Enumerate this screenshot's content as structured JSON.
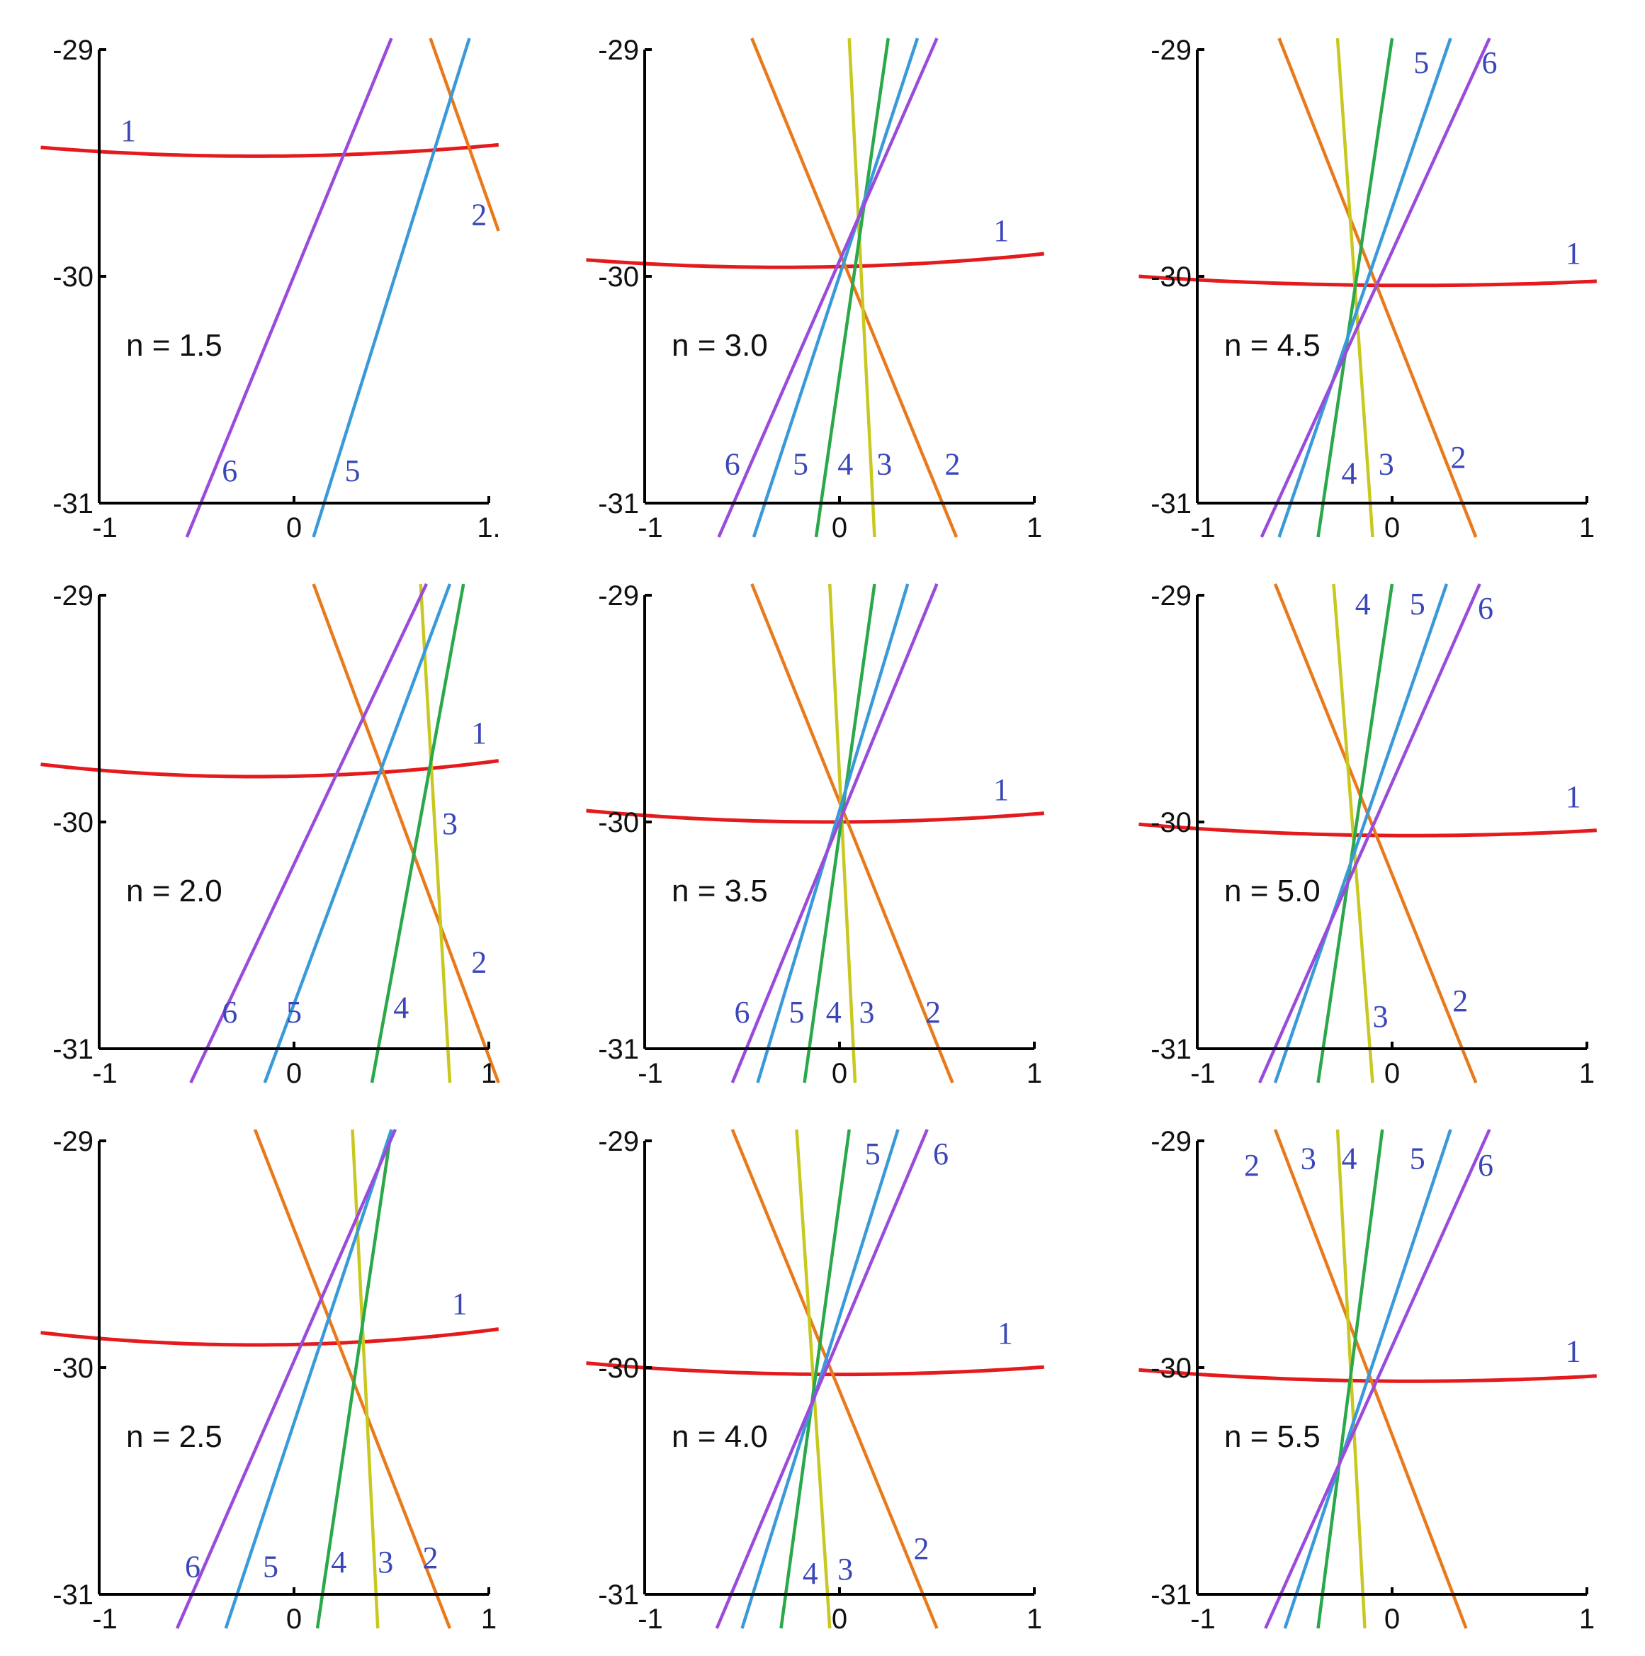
{
  "chart_data": [
    {
      "type": "line",
      "label": "n = 1.5",
      "xlim": [
        -1,
        1
      ],
      "ylim": [
        -31,
        -29
      ],
      "xticks": [
        "-1",
        "0",
        "1."
      ],
      "yticks": [
        "-29",
        "-30",
        "-31"
      ],
      "series": [
        {
          "name": "1",
          "color": "#e41a1c",
          "curve": "parabola",
          "vertex_x": -0.2,
          "vertex_y": -29.47,
          "edge_y": -29.42,
          "label_x": -0.85,
          "label_y": -29.36
        },
        {
          "name": "2",
          "color": "#e87a1c",
          "p1": [
            0.7,
            -28.95
          ],
          "p2": [
            1.05,
            -29.8
          ],
          "label_x": 0.95,
          "label_y": -29.73
        },
        {
          "name": "5",
          "color": "#3a9ad9",
          "p1": [
            0.1,
            -31.15
          ],
          "p2": [
            0.9,
            -28.95
          ],
          "label_x": 0.3,
          "label_y": -30.86
        },
        {
          "name": "6",
          "color": "#9a4bdc",
          "p1": [
            -0.55,
            -31.15
          ],
          "p2": [
            0.5,
            -28.95
          ],
          "label_x": -0.33,
          "label_y": -30.86
        }
      ]
    },
    {
      "type": "line",
      "label": "n = 3.0",
      "xlim": [
        -1,
        1
      ],
      "ylim": [
        -31,
        -29
      ],
      "xticks": [
        "-1",
        "0",
        "1"
      ],
      "yticks": [
        "-29",
        "-30",
        "-31"
      ],
      "series": [
        {
          "name": "1",
          "color": "#e41a1c",
          "curve": "parabola",
          "vertex_x": -0.3,
          "vertex_y": -29.96,
          "edge_y": -29.9,
          "label_x": 0.83,
          "label_y": -29.8
        },
        {
          "name": "2",
          "color": "#e87a1c",
          "p1": [
            -0.45,
            -28.95
          ],
          "p2": [
            0.6,
            -31.15
          ],
          "label_x": 0.58,
          "label_y": -30.83
        },
        {
          "name": "3",
          "color": "#c8c820",
          "p1": [
            0.05,
            -28.95
          ],
          "p2": [
            0.18,
            -31.15
          ],
          "label_x": 0.23,
          "label_y": -30.83
        },
        {
          "name": "4",
          "color": "#2aa84a",
          "p1": [
            0.25,
            -28.95
          ],
          "p2": [
            -0.12,
            -31.15
          ],
          "label_x": 0.03,
          "label_y": -30.83
        },
        {
          "name": "5",
          "color": "#3a9ad9",
          "p1": [
            0.4,
            -28.95
          ],
          "p2": [
            -0.44,
            -31.15
          ],
          "label_x": -0.2,
          "label_y": -30.83
        },
        {
          "name": "6",
          "color": "#9a4bdc",
          "p1": [
            0.5,
            -28.95
          ],
          "p2": [
            -0.62,
            -31.15
          ],
          "label_x": -0.55,
          "label_y": -30.83
        }
      ]
    },
    {
      "type": "line",
      "label": "n = 4.5",
      "xlim": [
        -1,
        1
      ],
      "ylim": [
        -31,
        -29
      ],
      "xticks": [
        "-1",
        "0",
        "1"
      ],
      "yticks": [
        "-29",
        "-30",
        "-31"
      ],
      "series": [
        {
          "name": "1",
          "color": "#e41a1c",
          "curve": "parabola",
          "vertex_x": 0.1,
          "vertex_y": -30.04,
          "edge_y": -30.0,
          "label_x": 0.93,
          "label_y": -29.9
        },
        {
          "name": "2",
          "color": "#e87a1c",
          "p1": [
            -0.58,
            -28.95
          ],
          "p2": [
            0.43,
            -31.15
          ],
          "label_x": 0.34,
          "label_y": -30.8
        },
        {
          "name": "3",
          "color": "#c8c820",
          "p1": [
            -0.28,
            -28.95
          ],
          "p2": [
            -0.1,
            -31.15
          ],
          "label_x": -0.03,
          "label_y": -30.83
        },
        {
          "name": "4",
          "color": "#2aa84a",
          "p1": [
            0.0,
            -28.95
          ],
          "p2": [
            -0.38,
            -31.15
          ],
          "label_x": -0.22,
          "label_y": -30.87
        },
        {
          "name": "5",
          "color": "#3a9ad9",
          "p1": [
            0.3,
            -28.95
          ],
          "p2": [
            -0.58,
            -31.15
          ],
          "label_x": 0.15,
          "label_y": -29.06
        },
        {
          "name": "6",
          "color": "#9a4bdc",
          "p1": [
            0.5,
            -28.95
          ],
          "p2": [
            -0.67,
            -31.15
          ],
          "label_x": 0.5,
          "label_y": -29.06
        }
      ]
    },
    {
      "type": "line",
      "label": "n = 2.0",
      "xlim": [
        -1,
        1
      ],
      "ylim": [
        -31,
        -29
      ],
      "xticks": [
        "-1",
        "0",
        "1"
      ],
      "yticks": [
        "-29",
        "-30",
        "-31"
      ],
      "series": [
        {
          "name": "1",
          "color": "#e41a1c",
          "curve": "parabola",
          "vertex_x": -0.2,
          "vertex_y": -29.8,
          "edge_y": -29.73,
          "label_x": 0.95,
          "label_y": -29.61
        },
        {
          "name": "2",
          "color": "#e87a1c",
          "p1": [
            0.1,
            -28.95
          ],
          "p2": [
            1.05,
            -31.15
          ],
          "label_x": 0.95,
          "label_y": -30.62
        },
        {
          "name": "3",
          "color": "#c8c820",
          "p1": [
            0.65,
            -28.95
          ],
          "p2": [
            0.8,
            -31.15
          ],
          "label_x": 0.8,
          "label_y": -30.01
        },
        {
          "name": "4",
          "color": "#2aa84a",
          "p1": [
            0.87,
            -28.95
          ],
          "p2": [
            0.4,
            -31.15
          ],
          "label_x": 0.55,
          "label_y": -30.82
        },
        {
          "name": "5",
          "color": "#3a9ad9",
          "p1": [
            0.8,
            -28.95
          ],
          "p2": [
            -0.15,
            -31.15
          ],
          "label_x": 0.0,
          "label_y": -30.84
        },
        {
          "name": "6",
          "color": "#9a4bdc",
          "p1": [
            0.68,
            -28.95
          ],
          "p2": [
            -0.53,
            -31.15
          ],
          "label_x": -0.33,
          "label_y": -30.84
        }
      ]
    },
    {
      "type": "line",
      "label": "n = 3.5",
      "xlim": [
        -1,
        1
      ],
      "ylim": [
        -31,
        -29
      ],
      "xticks": [
        "-1",
        "0",
        "1"
      ],
      "yticks": [
        "-29",
        "-30",
        "-31"
      ],
      "series": [
        {
          "name": "1",
          "color": "#e41a1c",
          "curve": "parabola",
          "vertex_x": -0.05,
          "vertex_y": -30.0,
          "edge_y": -29.95,
          "label_x": 0.83,
          "label_y": -29.86
        },
        {
          "name": "2",
          "color": "#e87a1c",
          "p1": [
            -0.45,
            -28.95
          ],
          "p2": [
            0.58,
            -31.15
          ],
          "label_x": 0.48,
          "label_y": -30.84
        },
        {
          "name": "3",
          "color": "#c8c820",
          "p1": [
            -0.05,
            -28.95
          ],
          "p2": [
            0.08,
            -31.15
          ],
          "label_x": 0.14,
          "label_y": -30.84
        },
        {
          "name": "4",
          "color": "#2aa84a",
          "p1": [
            0.18,
            -28.95
          ],
          "p2": [
            -0.18,
            -31.15
          ],
          "label_x": -0.03,
          "label_y": -30.84
        },
        {
          "name": "5",
          "color": "#3a9ad9",
          "p1": [
            0.35,
            -28.95
          ],
          "p2": [
            -0.42,
            -31.15
          ],
          "label_x": -0.22,
          "label_y": -30.84
        },
        {
          "name": "6",
          "color": "#9a4bdc",
          "p1": [
            0.5,
            -28.95
          ],
          "p2": [
            -0.55,
            -31.15
          ],
          "label_x": -0.5,
          "label_y": -30.84
        }
      ]
    },
    {
      "type": "line",
      "label": "n = 5.0",
      "xlim": [
        -1,
        1
      ],
      "ylim": [
        -31,
        -29
      ],
      "xticks": [
        "-1",
        "0",
        "1"
      ],
      "yticks": [
        "-29",
        "-30",
        "-31"
      ],
      "series": [
        {
          "name": "1",
          "color": "#e41a1c",
          "curve": "parabola",
          "vertex_x": 0.1,
          "vertex_y": -30.06,
          "edge_y": -30.01,
          "label_x": 0.93,
          "label_y": -29.89
        },
        {
          "name": "2",
          "color": "#e87a1c",
          "p1": [
            -0.6,
            -28.95
          ],
          "p2": [
            0.43,
            -31.15
          ],
          "label_x": 0.35,
          "label_y": -30.79
        },
        {
          "name": "3",
          "color": "#c8c820",
          "p1": [
            -0.3,
            -28.95
          ],
          "p2": [
            -0.1,
            -31.15
          ],
          "label_x": -0.06,
          "label_y": -30.86
        },
        {
          "name": "4",
          "color": "#2aa84a",
          "p1": [
            0.0,
            -28.95
          ],
          "p2": [
            -0.38,
            -31.15
          ],
          "label_x": -0.15,
          "label_y": -29.04
        },
        {
          "name": "5",
          "color": "#3a9ad9",
          "p1": [
            0.28,
            -28.95
          ],
          "p2": [
            -0.6,
            -31.15
          ],
          "label_x": 0.13,
          "label_y": -29.04
        },
        {
          "name": "6",
          "color": "#9a4bdc",
          "p1": [
            0.45,
            -28.95
          ],
          "p2": [
            -0.68,
            -31.15
          ],
          "label_x": 0.48,
          "label_y": -29.06
        }
      ]
    },
    {
      "type": "line",
      "label": "n = 2.5",
      "xlim": [
        -1,
        1
      ],
      "ylim": [
        -31,
        -29
      ],
      "xticks": [
        "-1",
        "0",
        "1"
      ],
      "yticks": [
        "-29",
        "-30",
        "-31"
      ],
      "series": [
        {
          "name": "1",
          "color": "#e41a1c",
          "curve": "parabola",
          "vertex_x": -0.2,
          "vertex_y": -29.9,
          "edge_y": -29.83,
          "label_x": 0.85,
          "label_y": -29.72
        },
        {
          "name": "2",
          "color": "#e87a1c",
          "p1": [
            -0.2,
            -28.95
          ],
          "p2": [
            0.8,
            -31.15
          ],
          "label_x": 0.7,
          "label_y": -30.84
        },
        {
          "name": "3",
          "color": "#c8c820",
          "p1": [
            0.3,
            -28.95
          ],
          "p2": [
            0.43,
            -31.15
          ],
          "label_x": 0.47,
          "label_y": -30.86
        },
        {
          "name": "4",
          "color": "#2aa84a",
          "p1": [
            0.5,
            -28.95
          ],
          "p2": [
            0.12,
            -31.15
          ],
          "label_x": 0.23,
          "label_y": -30.86
        },
        {
          "name": "5",
          "color": "#3a9ad9",
          "p1": [
            0.5,
            -28.95
          ],
          "p2": [
            -0.35,
            -31.15
          ],
          "label_x": -0.12,
          "label_y": -30.88
        },
        {
          "name": "6",
          "color": "#9a4bdc",
          "p1": [
            0.52,
            -28.95
          ],
          "p2": [
            -0.6,
            -31.15
          ],
          "label_x": -0.52,
          "label_y": -30.88
        }
      ]
    },
    {
      "type": "line",
      "label": "n = 4.0",
      "xlim": [
        -1,
        1
      ],
      "ylim": [
        -31,
        -29
      ],
      "xticks": [
        "-1",
        "0",
        "1"
      ],
      "yticks": [
        "-29",
        "-30",
        "-31"
      ],
      "series": [
        {
          "name": "1",
          "color": "#e41a1c",
          "curve": "parabola",
          "vertex_x": 0.0,
          "vertex_y": -30.03,
          "edge_y": -29.98,
          "label_x": 0.85,
          "label_y": -29.85
        },
        {
          "name": "2",
          "color": "#e87a1c",
          "p1": [
            -0.55,
            -28.95
          ],
          "p2": [
            0.5,
            -31.15
          ],
          "label_x": 0.42,
          "label_y": -30.8
        },
        {
          "name": "3",
          "color": "#c8c820",
          "p1": [
            -0.22,
            -28.95
          ],
          "p2": [
            -0.05,
            -31.15
          ],
          "label_x": 0.03,
          "label_y": -30.89
        },
        {
          "name": "4",
          "color": "#2aa84a",
          "p1": [
            0.05,
            -28.95
          ],
          "p2": [
            -0.3,
            -31.15
          ],
          "label_x": -0.15,
          "label_y": -30.91
        },
        {
          "name": "5",
          "color": "#3a9ad9",
          "p1": [
            0.3,
            -28.95
          ],
          "p2": [
            -0.5,
            -31.15
          ],
          "label_x": 0.17,
          "label_y": -29.06
        },
        {
          "name": "6",
          "color": "#9a4bdc",
          "p1": [
            0.45,
            -28.95
          ],
          "p2": [
            -0.63,
            -31.15
          ],
          "label_x": 0.52,
          "label_y": -29.06
        }
      ]
    },
    {
      "type": "line",
      "label": "n = 5.5",
      "xlim": [
        -1,
        1
      ],
      "ylim": [
        -31,
        -29
      ],
      "xticks": [
        "-1",
        "0",
        "1"
      ],
      "yticks": [
        "-29",
        "-30",
        "-31"
      ],
      "series": [
        {
          "name": "1",
          "color": "#e41a1c",
          "curve": "parabola",
          "vertex_x": 0.1,
          "vertex_y": -30.06,
          "edge_y": -30.01,
          "label_x": 0.93,
          "label_y": -29.93
        },
        {
          "name": "2",
          "color": "#e87a1c",
          "p1": [
            -0.6,
            -28.95
          ],
          "p2": [
            0.38,
            -31.15
          ],
          "label_x": -0.72,
          "label_y": -29.11
        },
        {
          "name": "3",
          "color": "#c8c820",
          "p1": [
            -0.28,
            -28.95
          ],
          "p2": [
            -0.14,
            -31.15
          ],
          "label_x": -0.43,
          "label_y": -29.08
        },
        {
          "name": "4",
          "color": "#2aa84a",
          "p1": [
            -0.05,
            -28.95
          ],
          "p2": [
            -0.38,
            -31.15
          ],
          "label_x": -0.22,
          "label_y": -29.08
        },
        {
          "name": "5",
          "color": "#3a9ad9",
          "p1": [
            0.3,
            -28.95
          ],
          "p2": [
            -0.55,
            -31.15
          ],
          "label_x": 0.13,
          "label_y": -29.08
        },
        {
          "name": "6",
          "color": "#9a4bdc",
          "p1": [
            0.5,
            -28.95
          ],
          "p2": [
            -0.65,
            -31.15
          ],
          "label_x": 0.48,
          "label_y": -29.11
        }
      ]
    }
  ],
  "style": {
    "axis_color": "#000000",
    "label_color": "#3b47b8",
    "text_color": "#111111"
  }
}
